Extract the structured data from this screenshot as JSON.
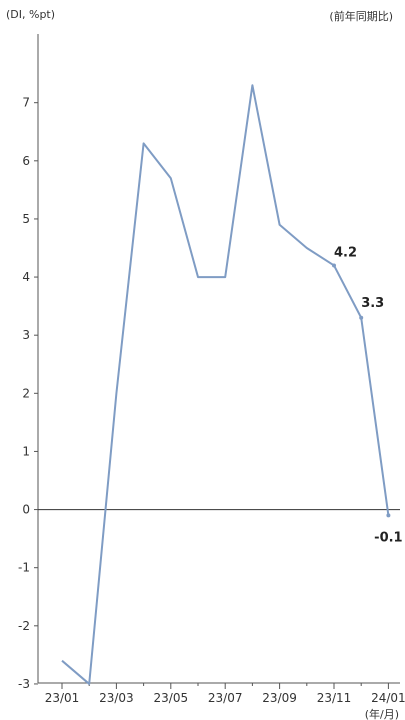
{
  "chart_data": {
    "type": "line",
    "y_unit": "(DI, %pt)",
    "top_right_note": "(前年同期比)",
    "x_unit": "(年/月)",
    "x": [
      "23/01",
      "23/02",
      "23/03",
      "23/04",
      "23/05",
      "23/06",
      "23/07",
      "23/08",
      "23/09",
      "23/10",
      "23/11",
      "23/12",
      "24/01"
    ],
    "x_tick_labels": [
      "23/01",
      "23/03",
      "23/05",
      "23/07",
      "23/09",
      "23/11",
      "24/01"
    ],
    "y_ticks": [
      7,
      6,
      5,
      4,
      3,
      2,
      1,
      0,
      -1,
      -2,
      -3
    ],
    "ylim": [
      -3.5,
      7.7
    ],
    "series": [
      {
        "values": [
          -2.6,
          -3.0,
          2.0,
          6.3,
          5.7,
          4.0,
          4.0,
          7.3,
          4.9,
          4.5,
          4.2,
          3.3,
          -0.1
        ]
      }
    ],
    "data_labels": [
      {
        "index": 10,
        "text": "4.2"
      },
      {
        "index": 11,
        "text": "3.3"
      },
      {
        "index": 12,
        "text": "-0.1"
      }
    ],
    "line_color": "#7f9cc4",
    "zero_line_color": "#333333",
    "grid": false,
    "legend": "none"
  }
}
